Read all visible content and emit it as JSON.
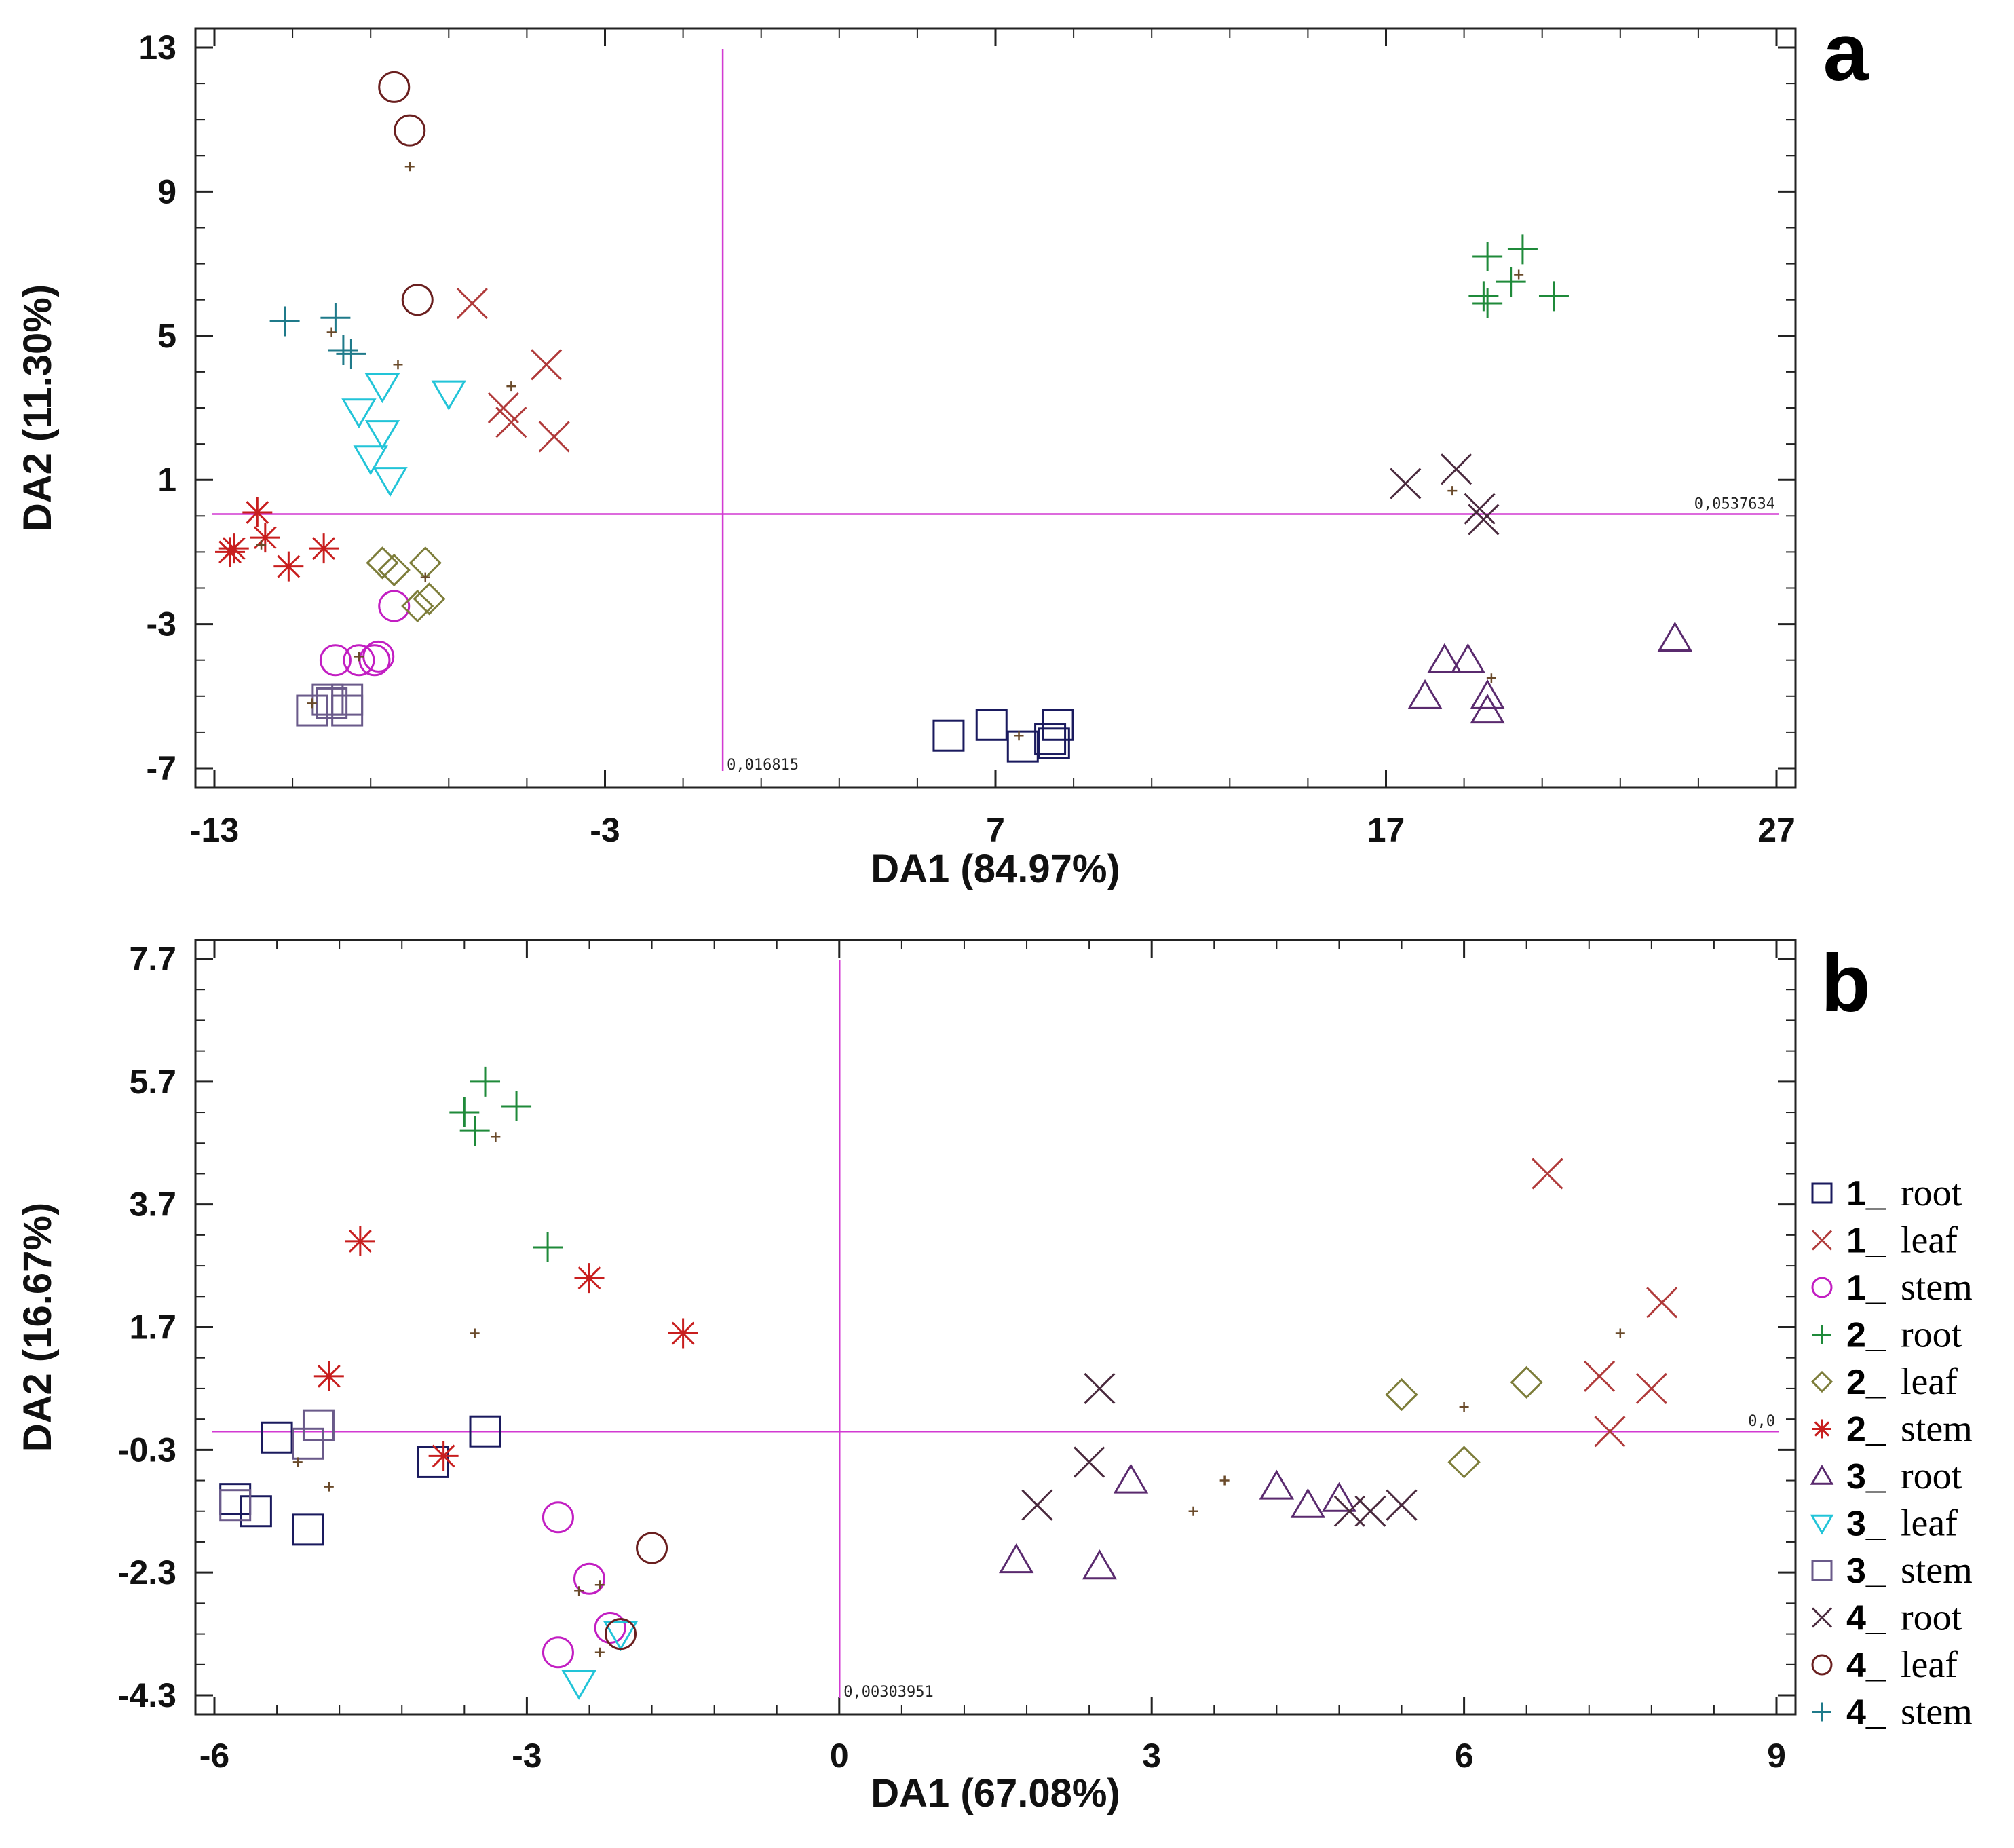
{
  "group_styles": {
    "1_root": {
      "symbol": "square",
      "color": "#1a1a5e"
    },
    "1_leaf": {
      "symbol": "x",
      "color": "#b03a3a"
    },
    "1_stem": {
      "symbol": "circle",
      "color": "#c21ec2"
    },
    "2_root": {
      "symbol": "plus",
      "color": "#1f8a3a"
    },
    "2_leaf": {
      "symbol": "diamond",
      "color": "#7d7d3a"
    },
    "2_stem": {
      "symbol": "asterisk",
      "color": "#c81e1e"
    },
    "3_root": {
      "symbol": "triangle-up",
      "color": "#5a2a6e"
    },
    "3_leaf": {
      "symbol": "triangle-down",
      "color": "#22c4d8"
    },
    "3_stem": {
      "symbol": "square",
      "color": "#6a5a8a"
    },
    "4_root": {
      "symbol": "x",
      "color": "#4a2a3e"
    },
    "4_leaf": {
      "symbol": "circle",
      "color": "#6a1f1f"
    },
    "4_stem": {
      "symbol": "plus",
      "color": "#1f7a8a"
    },
    "centroid": {
      "symbol": "small-plus",
      "color": "#6a4a2a"
    },
    "ref_line": "#d23ad2"
  },
  "legend": {
    "items": [
      {
        "num": "1_",
        "part": "root",
        "group": "1_root"
      },
      {
        "num": "1_",
        "part": "leaf",
        "group": "1_leaf"
      },
      {
        "num": "1_",
        "part": "stem",
        "group": "1_stem"
      },
      {
        "num": "2_",
        "part": "root",
        "group": "2_root"
      },
      {
        "num": "2_",
        "part": "leaf",
        "group": "2_leaf"
      },
      {
        "num": "2_",
        "part": "stem",
        "group": "2_stem"
      },
      {
        "num": "3_",
        "part": "root",
        "group": "3_root"
      },
      {
        "num": "3_",
        "part": "leaf",
        "group": "3_leaf"
      },
      {
        "num": "3_",
        "part": "stem",
        "group": "3_stem"
      },
      {
        "num": "4_",
        "part": "root",
        "group": "4_root"
      },
      {
        "num": "4_",
        "part": "leaf",
        "group": "4_leaf"
      },
      {
        "num": "4_",
        "part": "stem",
        "group": "4_stem"
      }
    ]
  },
  "chart_data": [
    {
      "type": "scatter",
      "panel": "a",
      "xlabel": "DA1 (84.97%)",
      "ylabel": "DA2 (11.30%)",
      "xlim": [
        -13,
        27
      ],
      "ylim": [
        -7,
        13
      ],
      "xticks": [
        -13,
        -3,
        7,
        17,
        27
      ],
      "yticks": [
        13,
        9,
        5,
        1,
        -3,
        -7
      ],
      "xtick_labels": [
        "-13",
        "-3",
        "7",
        "17",
        "27"
      ],
      "ytick_labels": [
        "13",
        "9",
        "5",
        "1",
        "-3",
        "-7"
      ],
      "ref_lines": {
        "x": 0.016815,
        "y": 0.0537634
      },
      "ref_labels": {
        "x": "0,016815",
        "y": "0,0537634"
      },
      "series": [
        {
          "group": "1_root",
          "points": [
            [
              5.8,
              -6.1
            ],
            [
              6.9,
              -5.8
            ],
            [
              7.7,
              -6.4
            ],
            [
              8.4,
              -6.2
            ],
            [
              8.6,
              -5.8
            ],
            [
              8.5,
              -6.3
            ]
          ]
        },
        {
          "group": "1_leaf",
          "points": [
            [
              -6.4,
              5.9
            ],
            [
              -5.6,
              3.0
            ],
            [
              -5.4,
              2.6
            ],
            [
              -4.5,
              4.2
            ],
            [
              -4.3,
              2.2
            ]
          ]
        },
        {
          "group": "1_stem",
          "points": [
            [
              -8.4,
              -2.5
            ],
            [
              -9.9,
              -4.0
            ],
            [
              -9.3,
              -4.0
            ],
            [
              -8.9,
              -4.0
            ],
            [
              -8.8,
              -3.9
            ]
          ]
        },
        {
          "group": "2_root",
          "points": [
            [
              19.6,
              7.2
            ],
            [
              20.5,
              7.4
            ],
            [
              19.5,
              6.1
            ],
            [
              20.2,
              6.5
            ],
            [
              21.3,
              6.1
            ],
            [
              19.6,
              5.9
            ]
          ]
        },
        {
          "group": "2_leaf",
          "points": [
            [
              -8.7,
              -1.3
            ],
            [
              -8.4,
              -1.5
            ],
            [
              -7.6,
              -1.3
            ],
            [
              -7.5,
              -2.3
            ],
            [
              -7.8,
              -2.5
            ]
          ]
        },
        {
          "group": "2_stem",
          "points": [
            [
              -11.9,
              0.1
            ],
            [
              -11.7,
              -0.6
            ],
            [
              -12.6,
              -1.0
            ],
            [
              -12.5,
              -0.9
            ],
            [
              -11.1,
              -1.4
            ],
            [
              -10.2,
              -0.9
            ]
          ]
        },
        {
          "group": "3_root",
          "points": [
            [
              18.5,
              -4.0
            ],
            [
              19.1,
              -4.0
            ],
            [
              18.0,
              -5.0
            ],
            [
              19.6,
              -5.0
            ],
            [
              19.6,
              -5.4
            ],
            [
              24.4,
              -3.4
            ]
          ]
        },
        {
          "group": "3_leaf",
          "points": [
            [
              -9.3,
              2.9
            ],
            [
              -8.7,
              3.6
            ],
            [
              -8.7,
              2.3
            ],
            [
              -9.0,
              1.6
            ],
            [
              -8.5,
              1.0
            ],
            [
              -7.0,
              3.4
            ]
          ]
        },
        {
          "group": "3_stem",
          "points": [
            [
              -10.5,
              -5.4
            ],
            [
              -10.0,
              -5.2
            ],
            [
              -9.6,
              -5.1
            ],
            [
              -9.6,
              -5.4
            ],
            [
              -10.1,
              -5.1
            ]
          ]
        },
        {
          "group": "4_root",
          "points": [
            [
              17.5,
              0.9
            ],
            [
              18.8,
              1.3
            ],
            [
              19.4,
              0.2
            ],
            [
              19.5,
              -0.1
            ]
          ]
        },
        {
          "group": "4_leaf",
          "points": [
            [
              -8.4,
              11.9
            ],
            [
              -8.0,
              10.7
            ],
            [
              -7.8,
              6.0
            ]
          ]
        },
        {
          "group": "4_stem",
          "points": [
            [
              -11.2,
              5.4
            ],
            [
              -9.9,
              5.5
            ],
            [
              -9.7,
              4.6
            ],
            [
              -9.5,
              4.5
            ]
          ]
        },
        {
          "group": "centroid",
          "points": [
            [
              -8.0,
              9.7
            ],
            [
              -10.0,
              5.1
            ],
            [
              -8.3,
              4.2
            ],
            [
              -5.4,
              3.6
            ],
            [
              -7.6,
              -1.7
            ],
            [
              -9.3,
              -3.9
            ],
            [
              -10.5,
              -5.2
            ],
            [
              -11.8,
              -0.8
            ],
            [
              7.6,
              -6.1
            ],
            [
              18.7,
              0.7
            ],
            [
              19.7,
              -4.5
            ],
            [
              20.4,
              6.7
            ]
          ]
        }
      ]
    },
    {
      "type": "scatter",
      "panel": "b",
      "xlabel": "DA1 (67.08%)",
      "ylabel": "DA2 (16.67%)",
      "xlim": [
        -6,
        9
      ],
      "ylim": [
        -4.3,
        7.7
      ],
      "xticks": [
        -6,
        -3,
        0,
        3,
        6,
        9
      ],
      "yticks": [
        7.7,
        5.7,
        3.7,
        1.7,
        -0.3,
        -2.3,
        -4.3
      ],
      "xtick_labels": [
        "-6",
        "-3",
        "0",
        "3",
        "6",
        "9"
      ],
      "ytick_labels": [
        "7.7",
        "5.7",
        "3.7",
        "1.7",
        "-0.3",
        "-2.3",
        "-4.3"
      ],
      "ref_lines": {
        "x": 0.00303951,
        "y": 0.0
      },
      "ref_labels": {
        "x": "0,00303951",
        "y": "0,0"
      },
      "series": [
        {
          "group": "1_root",
          "points": [
            [
              -5.4,
              -0.1
            ],
            [
              -5.8,
              -1.1
            ],
            [
              -5.6,
              -1.3
            ],
            [
              -5.1,
              -1.6
            ],
            [
              -3.9,
              -0.5
            ],
            [
              -3.4,
              0.0
            ]
          ]
        },
        {
          "group": "1_leaf",
          "points": [
            [
              6.8,
              4.2
            ],
            [
              7.9,
              2.1
            ],
            [
              7.3,
              0.9
            ],
            [
              7.8,
              0.7
            ],
            [
              7.4,
              0.0
            ]
          ]
        },
        {
          "group": "1_stem",
          "points": [
            [
              -2.7,
              -1.4
            ],
            [
              -2.4,
              -2.4
            ],
            [
              -2.2,
              -3.2
            ],
            [
              -2.7,
              -3.6
            ]
          ]
        },
        {
          "group": "2_root",
          "points": [
            [
              -3.4,
              5.7
            ],
            [
              -3.6,
              5.2
            ],
            [
              -3.5,
              4.9
            ],
            [
              -3.1,
              5.3
            ],
            [
              -2.8,
              3.0
            ]
          ]
        },
        {
          "group": "2_leaf",
          "points": [
            [
              5.4,
              0.6
            ],
            [
              6.6,
              0.8
            ],
            [
              6.0,
              -0.5
            ]
          ]
        },
        {
          "group": "2_stem",
          "points": [
            [
              -4.6,
              3.1
            ],
            [
              -2.4,
              2.5
            ],
            [
              -1.5,
              1.6
            ],
            [
              -4.9,
              0.9
            ],
            [
              -3.8,
              -0.4
            ]
          ]
        },
        {
          "group": "3_root",
          "points": [
            [
              1.7,
              -2.1
            ],
            [
              2.5,
              -2.2
            ],
            [
              2.8,
              -0.8
            ],
            [
              4.2,
              -0.9
            ],
            [
              4.5,
              -1.2
            ],
            [
              4.8,
              -1.1
            ]
          ]
        },
        {
          "group": "3_leaf",
          "points": [
            [
              -2.5,
              -4.1
            ],
            [
              -2.1,
              -3.3
            ]
          ]
        },
        {
          "group": "3_stem",
          "points": [
            [
              -5.0,
              0.1
            ],
            [
              -5.1,
              -0.2
            ],
            [
              -5.8,
              -1.2
            ]
          ]
        },
        {
          "group": "4_root",
          "points": [
            [
              2.5,
              0.7
            ],
            [
              2.4,
              -0.5
            ],
            [
              1.9,
              -1.2
            ],
            [
              4.9,
              -1.3
            ],
            [
              5.1,
              -1.3
            ],
            [
              5.4,
              -1.2
            ]
          ]
        },
        {
          "group": "4_leaf",
          "points": [
            [
              -1.8,
              -1.9
            ],
            [
              -2.1,
              -3.3
            ]
          ]
        },
        {
          "group": "centroid",
          "points": [
            [
              -3.3,
              4.8
            ],
            [
              -3.5,
              1.6
            ],
            [
              -4.9,
              -0.9
            ],
            [
              -5.2,
              -0.5
            ],
            [
              -2.5,
              -2.6
            ],
            [
              -2.3,
              -2.5
            ],
            [
              -2.3,
              -3.6
            ],
            [
              3.4,
              -1.3
            ],
            [
              3.7,
              -0.8
            ],
            [
              6.0,
              0.4
            ],
            [
              7.5,
              1.6
            ]
          ]
        }
      ]
    }
  ],
  "panel_letters": {
    "a": "a",
    "b": "b"
  }
}
